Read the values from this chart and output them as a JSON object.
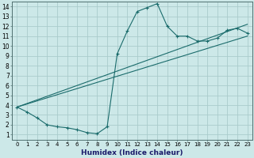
{
  "xlabel": "Humidex (Indice chaleur)",
  "bg_color": "#cce8e8",
  "grid_color": "#aacccc",
  "line_color": "#1a6b6b",
  "xlim": [
    -0.5,
    23.5
  ],
  "ylim": [
    0.5,
    14.5
  ],
  "xticks": [
    0,
    1,
    2,
    3,
    4,
    5,
    6,
    7,
    8,
    9,
    10,
    11,
    12,
    13,
    14,
    15,
    16,
    17,
    18,
    19,
    20,
    21,
    22,
    23
  ],
  "yticks": [
    1,
    2,
    3,
    4,
    5,
    6,
    7,
    8,
    9,
    10,
    11,
    12,
    13,
    14
  ],
  "line1_x": [
    0,
    1,
    2,
    3,
    4,
    5,
    6,
    7,
    8,
    9,
    10,
    11,
    12,
    13,
    14,
    15,
    16,
    17,
    18,
    19,
    20,
    21,
    22,
    23
  ],
  "line1_y": [
    3.8,
    3.3,
    2.7,
    2.0,
    1.8,
    1.7,
    1.5,
    1.2,
    1.1,
    1.8,
    9.2,
    11.5,
    13.5,
    13.9,
    14.3,
    12.0,
    11.0,
    11.0,
    10.5,
    10.5,
    10.8,
    11.6,
    11.8,
    11.3
  ],
  "line2_x": [
    0,
    23
  ],
  "line2_y": [
    3.8,
    11.0
  ],
  "line3_x": [
    0,
    23
  ],
  "line3_y": [
    3.8,
    12.2
  ],
  "xlabel_fontsize": 6.5,
  "tick_fontsize_x": 5.0,
  "tick_fontsize_y": 5.5
}
